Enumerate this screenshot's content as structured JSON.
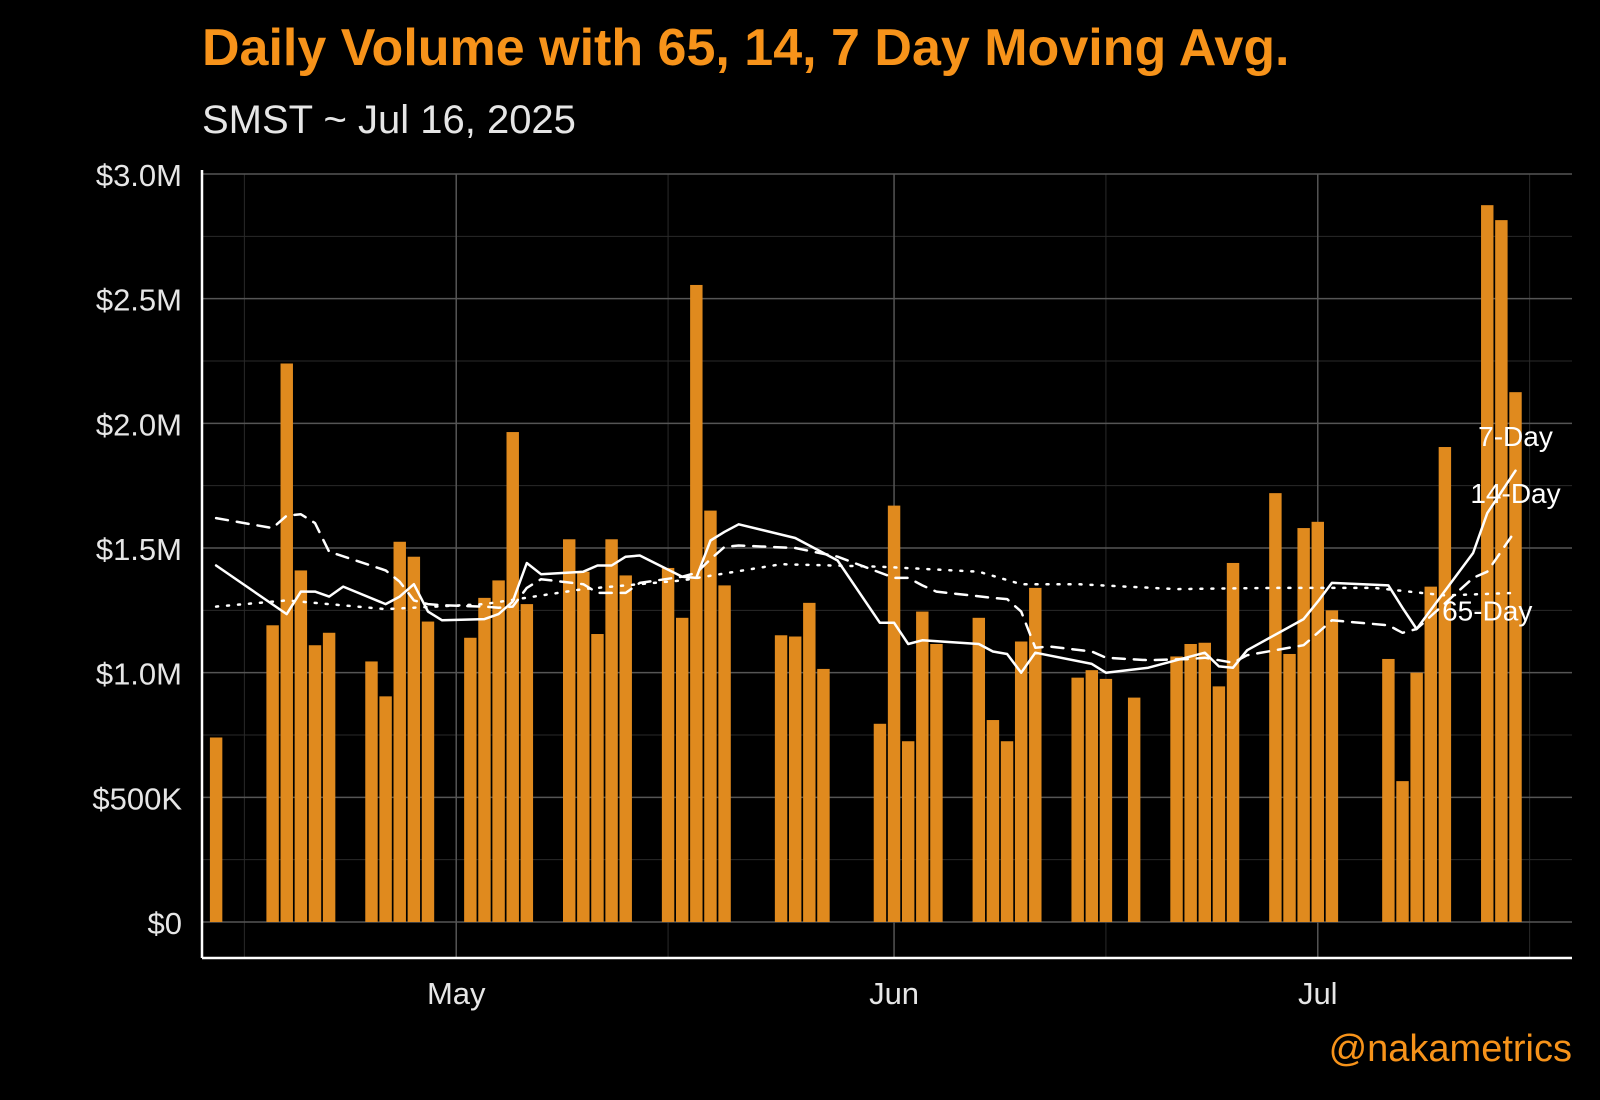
{
  "chart_data": {
    "type": "bar",
    "title": "Daily Volume with 65, 14, 7 Day Moving Avg.",
    "subtitle": "SMST ~ Jul 16, 2025",
    "watermark": "@nakametrics",
    "bar_color": "#e08a1e",
    "title_color": "#f7931a",
    "line_color": "#ffffff",
    "background": "#000000",
    "grid": true,
    "ylim": [
      0,
      3000000
    ],
    "xlim": [
      "2025-04-13",
      "2025-07-19"
    ],
    "y_ticks": [
      {
        "value": 0,
        "label": "$0"
      },
      {
        "value": 500000,
        "label": "$500K"
      },
      {
        "value": 1000000,
        "label": "$1.0M"
      },
      {
        "value": 1500000,
        "label": "$1.5M"
      },
      {
        "value": 2000000,
        "label": "$2.0M"
      },
      {
        "value": 2500000,
        "label": "$2.5M"
      },
      {
        "value": 3000000,
        "label": "$3.0M"
      }
    ],
    "x_ticks": [
      {
        "date": "2025-05-01",
        "label": "May"
      },
      {
        "date": "2025-06-01",
        "label": "Jun"
      },
      {
        "date": "2025-07-01",
        "label": "Jul"
      }
    ],
    "x_minor_ticks": [
      "2025-04-16",
      "2025-05-16",
      "2025-06-16",
      "2025-07-16"
    ],
    "bars": {
      "dates": [
        "2025-04-14",
        "2025-04-18",
        "2025-04-19",
        "2025-04-20",
        "2025-04-21",
        "2025-04-22",
        "2025-04-25",
        "2025-04-26",
        "2025-04-27",
        "2025-04-28",
        "2025-04-29",
        "2025-05-02",
        "2025-05-03",
        "2025-05-04",
        "2025-05-05",
        "2025-05-06",
        "2025-05-09",
        "2025-05-10",
        "2025-05-11",
        "2025-05-12",
        "2025-05-13",
        "2025-05-16",
        "2025-05-17",
        "2025-05-18",
        "2025-05-19",
        "2025-05-20",
        "2025-05-24",
        "2025-05-25",
        "2025-05-26",
        "2025-05-27",
        "2025-05-31",
        "2025-06-01",
        "2025-06-02",
        "2025-06-03",
        "2025-06-04",
        "2025-06-07",
        "2025-06-08",
        "2025-06-09",
        "2025-06-10",
        "2025-06-11",
        "2025-06-14",
        "2025-06-15",
        "2025-06-16",
        "2025-06-18",
        "2025-06-21",
        "2025-06-22",
        "2025-06-23",
        "2025-06-24",
        "2025-06-25",
        "2025-06-28",
        "2025-06-29",
        "2025-06-30",
        "2025-07-01",
        "2025-07-02",
        "2025-07-06",
        "2025-07-07",
        "2025-07-08",
        "2025-07-09",
        "2025-07-10",
        "2025-07-13",
        "2025-07-14",
        "2025-07-15"
      ],
      "values": [
        740000,
        1190000,
        2240000,
        1410000,
        1110000,
        1160000,
        1045000,
        905000,
        1525000,
        1465000,
        1205000,
        1140000,
        1300000,
        1370000,
        1965000,
        1275000,
        1535000,
        1405000,
        1155000,
        1535000,
        1390000,
        1420000,
        1220000,
        2555000,
        1650000,
        1350000,
        1150000,
        1145000,
        1280000,
        1015000,
        795000,
        1670000,
        725000,
        1245000,
        1115000,
        1220000,
        810000,
        725000,
        1125000,
        1340000,
        980000,
        1010000,
        975000,
        900000,
        1065000,
        1115000,
        1120000,
        945000,
        1440000,
        1720000,
        1075000,
        1580000,
        1605000,
        1250000,
        1055000,
        565000,
        1000000,
        1345000,
        1905000,
        2875000,
        2815000,
        2125000
      ]
    },
    "series": [
      {
        "name": "7-Day",
        "dash": "solid",
        "x": [
          "2025-04-14",
          "2025-04-19",
          "2025-04-20",
          "2025-04-21",
          "2025-04-22",
          "2025-04-23",
          "2025-04-26",
          "2025-04-27",
          "2025-04-28",
          "2025-04-29",
          "2025-04-30",
          "2025-05-03",
          "2025-05-04",
          "2025-05-05",
          "2025-05-06",
          "2025-05-07",
          "2025-05-10",
          "2025-05-11",
          "2025-05-12",
          "2025-05-13",
          "2025-05-14",
          "2025-05-17",
          "2025-05-18",
          "2025-05-19",
          "2025-05-20",
          "2025-05-21",
          "2025-05-25",
          "2025-05-28",
          "2025-05-31",
          "2025-06-01",
          "2025-06-02",
          "2025-06-03",
          "2025-06-07",
          "2025-06-08",
          "2025-06-09",
          "2025-06-10",
          "2025-06-11",
          "2025-06-15",
          "2025-06-16",
          "2025-06-19",
          "2025-06-23",
          "2025-06-24",
          "2025-06-25",
          "2025-06-26",
          "2025-06-30",
          "2025-07-01",
          "2025-07-02",
          "2025-07-06",
          "2025-07-07",
          "2025-07-08",
          "2025-07-12",
          "2025-07-13",
          "2025-07-15"
        ],
        "y": [
          1430000,
          1235000,
          1325000,
          1325000,
          1305000,
          1345000,
          1275000,
          1305000,
          1355000,
          1245000,
          1210000,
          1215000,
          1235000,
          1285000,
          1440000,
          1395000,
          1405000,
          1430000,
          1430000,
          1465000,
          1470000,
          1385000,
          1380000,
          1530000,
          1565000,
          1595000,
          1540000,
          1450000,
          1200000,
          1200000,
          1115000,
          1130000,
          1115000,
          1085000,
          1075000,
          1000000,
          1080000,
          1035000,
          1000000,
          1020000,
          1080000,
          1025000,
          1020000,
          1090000,
          1215000,
          1285000,
          1360000,
          1350000,
          1260000,
          1175000,
          1480000,
          1640000,
          1810000
        ]
      },
      {
        "name": "14-Day",
        "dash": "dashed",
        "x": [
          "2025-04-14",
          "2025-04-18",
          "2025-04-19",
          "2025-04-20",
          "2025-04-21",
          "2025-04-22",
          "2025-04-26",
          "2025-04-27",
          "2025-04-28",
          "2025-04-29",
          "2025-04-30",
          "2025-05-03",
          "2025-05-04",
          "2025-05-05",
          "2025-05-06",
          "2025-05-07",
          "2025-05-10",
          "2025-05-11",
          "2025-05-12",
          "2025-05-13",
          "2025-05-14",
          "2025-05-17",
          "2025-05-18",
          "2025-05-19",
          "2025-05-20",
          "2025-05-21",
          "2025-05-25",
          "2025-05-28",
          "2025-06-01",
          "2025-06-02",
          "2025-06-03",
          "2025-06-04",
          "2025-06-08",
          "2025-06-09",
          "2025-06-10",
          "2025-06-11",
          "2025-06-12",
          "2025-06-15",
          "2025-06-16",
          "2025-06-19",
          "2025-06-22",
          "2025-06-23",
          "2025-06-24",
          "2025-06-25",
          "2025-06-26",
          "2025-06-30",
          "2025-07-01",
          "2025-07-02",
          "2025-07-06",
          "2025-07-07",
          "2025-07-08",
          "2025-07-12",
          "2025-07-13",
          "2025-07-15"
        ],
        "y": [
          1620000,
          1580000,
          1630000,
          1635000,
          1600000,
          1485000,
          1410000,
          1365000,
          1290000,
          1275000,
          1270000,
          1265000,
          1260000,
          1265000,
          1340000,
          1375000,
          1355000,
          1320000,
          1320000,
          1320000,
          1360000,
          1385000,
          1400000,
          1455000,
          1505000,
          1510000,
          1500000,
          1465000,
          1380000,
          1380000,
          1350000,
          1325000,
          1300000,
          1295000,
          1245000,
          1100000,
          1105000,
          1085000,
          1060000,
          1050000,
          1055000,
          1060000,
          1050000,
          1040000,
          1070000,
          1110000,
          1160000,
          1210000,
          1190000,
          1160000,
          1175000,
          1380000,
          1405000,
          1570000
        ]
      },
      {
        "name": "65-Day",
        "dash": "dotted",
        "x": [
          "2025-04-14",
          "2025-04-19",
          "2025-04-26",
          "2025-05-03",
          "2025-05-10",
          "2025-05-17",
          "2025-05-24",
          "2025-05-31",
          "2025-06-07",
          "2025-06-10",
          "2025-06-14",
          "2025-06-21",
          "2025-06-28",
          "2025-07-05",
          "2025-07-10",
          "2025-07-15"
        ],
        "y": [
          1265000,
          1290000,
          1255000,
          1275000,
          1335000,
          1370000,
          1435000,
          1425000,
          1405000,
          1355000,
          1355000,
          1335000,
          1340000,
          1340000,
          1310000,
          1320000
        ]
      }
    ],
    "series_labels": [
      {
        "text": "7-Day",
        "date": "2025-07-15",
        "value": 1910000
      },
      {
        "text": "14-Day",
        "date": "2025-07-15",
        "value": 1680000
      },
      {
        "text": "65-Day",
        "date": "2025-07-13",
        "value": 1210000
      }
    ]
  }
}
